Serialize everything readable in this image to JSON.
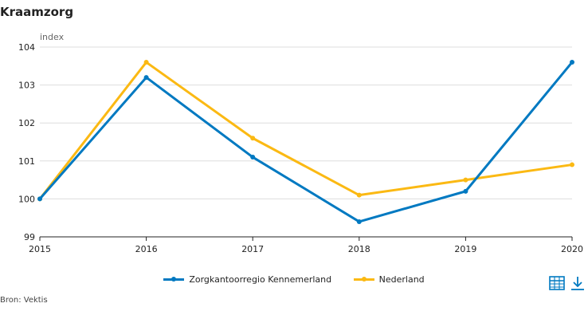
{
  "title": "Kraamzorg",
  "source": "Bron: Vektis",
  "icons": {
    "table": "table-icon",
    "download": "download-icon",
    "accent": "#0079c1"
  },
  "chart_data": {
    "type": "line",
    "ylabel": "index",
    "xlabel": "",
    "x": [
      "2015",
      "2016",
      "2017",
      "2018",
      "2019",
      "2020"
    ],
    "ylim": [
      99,
      104
    ],
    "yticks": [
      99,
      100,
      101,
      102,
      103,
      104
    ],
    "grid": true,
    "legend_position": "bottom",
    "series": [
      {
        "name": "Zorgkantoorregio Kennemerland",
        "color": "#0079c1",
        "values": [
          100,
          103.2,
          101.1,
          99.4,
          100.2,
          103.6
        ]
      },
      {
        "name": "Nederland",
        "color": "#fbb913",
        "values": [
          100,
          103.6,
          101.6,
          100.1,
          100.5,
          100.9
        ]
      }
    ]
  }
}
